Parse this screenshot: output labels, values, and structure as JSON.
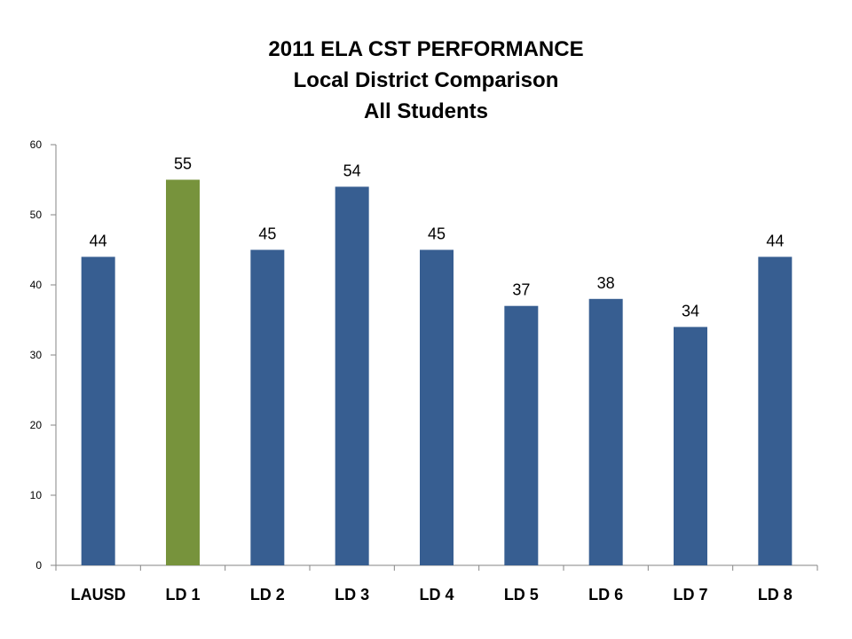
{
  "chart_data": {
    "type": "bar",
    "title_lines": [
      "2011 ELA CST PERFORMANCE",
      "Local District Comparison",
      "All Students"
    ],
    "categories": [
      "LAUSD",
      "LD 1",
      "LD 2",
      "LD 3",
      "LD 4",
      "LD 5",
      "LD 6",
      "LD 7",
      "LD 8"
    ],
    "values": [
      44,
      55,
      45,
      54,
      45,
      37,
      38,
      34,
      44
    ],
    "data_labels": [
      "44",
      "55",
      "45",
      "54",
      "45",
      "37",
      "38",
      "34",
      "44"
    ],
    "bar_colors": [
      "#375E91",
      "#77933C",
      "#375E91",
      "#375E91",
      "#375E91",
      "#375E91",
      "#375E91",
      "#375E91",
      "#375E91"
    ],
    "default_color": "#375E91",
    "highlight_color": "#77933C",
    "ylim": [
      0,
      60
    ],
    "yticks": [
      0,
      10,
      20,
      30,
      40,
      50,
      60
    ],
    "grid": false,
    "legend": "none",
    "xlabel": "",
    "ylabel": ""
  }
}
